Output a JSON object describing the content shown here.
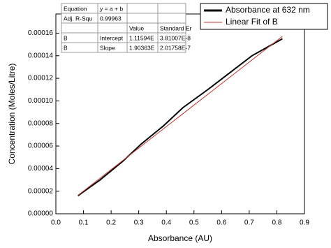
{
  "chart_data": {
    "type": "line",
    "x_label": "Absorbance (AU)",
    "y_label": "Concentration (Moles/Litre)",
    "xlim": [
      0,
      0.9
    ],
    "xticks": [
      {
        "value": 0,
        "label": "0.0"
      },
      0.1,
      0.2,
      0.3,
      0.4,
      0.5,
      0.6,
      0.7,
      0.8,
      0.9
    ],
    "ylim": [
      0,
      0.000177
    ],
    "yticks": [
      {
        "value": 0,
        "label": "0.00000"
      },
      {
        "value": 2e-05,
        "label": "0.00002"
      },
      {
        "value": 4e-05,
        "label": "0.00004"
      },
      {
        "value": 6e-05,
        "label": "0.00006"
      },
      {
        "value": 8e-05,
        "label": "0.00008"
      },
      {
        "value": 0.0001,
        "label": "0.00010"
      },
      {
        "value": 0.00012,
        "label": "0.00012"
      },
      {
        "value": 0.00014,
        "label": "0.00014"
      },
      {
        "value": 0.00016,
        "label": "0.00016"
      }
    ],
    "series": [
      {
        "name": "Absorbance at 632 nm",
        "color": "#000000",
        "line_width": 2,
        "x": [
          0.08,
          0.16,
          0.24,
          0.31,
          0.39,
          0.46,
          0.55,
          0.63,
          0.71,
          0.82
        ],
        "values": [
          1.6e-05,
          3e-05,
          4.6e-05,
          6.2e-05,
          7.8e-05,
          9.4e-05,
          0.00011,
          0.000125,
          0.00014,
          0.000155
        ]
      },
      {
        "name": "Linear Fit of B",
        "color": "#c0392b",
        "line_width": 1,
        "x": [
          0.08,
          0.82
        ],
        "values": [
          1.63e-05,
          0.0001572
        ]
      }
    ],
    "legend": "top-right"
  },
  "table": {
    "rows": [
      [
        "Equation",
        "y = a + b",
        null,
        null
      ],
      [
        "Adj. R-Squ",
        "0.99963",
        null,
        null
      ],
      [
        null,
        null,
        "Value",
        "Standard Er"
      ],
      [
        "B",
        "Intercept",
        "1.11594E",
        "3.81007E-8"
      ],
      [
        "B",
        "Slope",
        "1.90363E",
        "2.01758E-7"
      ]
    ]
  }
}
